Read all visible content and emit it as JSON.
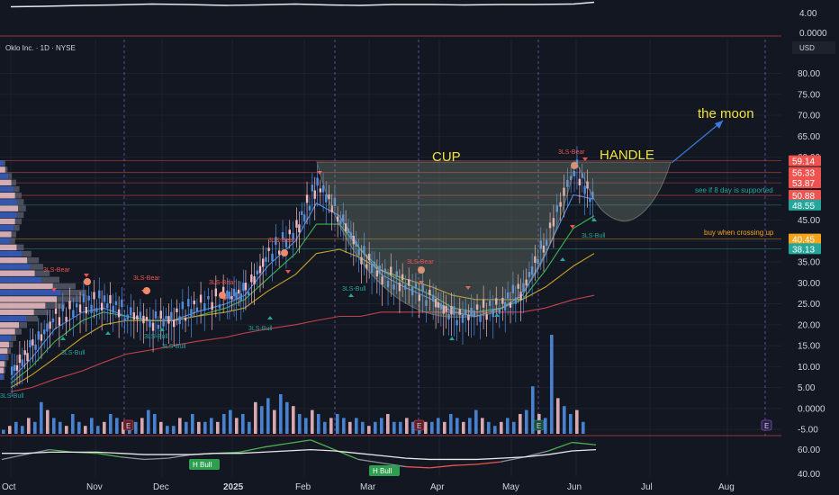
{
  "header": {
    "symbol_title": "Oklo Inc. · 1D · NYSE",
    "currency_label": "USD"
  },
  "colors": {
    "background": "#131722",
    "bull": "#26a69a",
    "bear": "#ef5350",
    "candle_up": "#4e8de2",
    "candle_down": "#f0b8c0",
    "ema8": "#4e8de2",
    "ema21": "#3fb24f",
    "sma50": "#c9a227",
    "sma200": "#c2414b",
    "annotation_yellow": "#f2e33a",
    "annotation_blue": "#3c7bdf"
  },
  "chart_data": [
    {
      "type": "line",
      "name": "top-oscillator",
      "yticks": [
        "4.00",
        "0.0000"
      ],
      "ylim": [
        -1,
        6
      ],
      "x": [
        "2024-10-01",
        "2024-10-15",
        "2024-11-01",
        "2024-11-15",
        "2024-12-01",
        "2024-12-15",
        "2025-01-02",
        "2025-01-15",
        "2025-02-01",
        "2025-02-15",
        "2025-03-01",
        "2025-03-15",
        "2025-04-01",
        "2025-04-15",
        "2025-05-01",
        "2025-05-15",
        "2025-06-01",
        "2025-06-10"
      ],
      "values": [
        4.3,
        4.4,
        4.6,
        4.7,
        4.9,
        4.8,
        4.6,
        4.7,
        4.9,
        4.7,
        4.6,
        4.8,
        4.8,
        4.7,
        4.8,
        4.8,
        4.9,
        5.3
      ]
    },
    {
      "type": "line",
      "name": "price",
      "title": "Oklo Inc. · 1D · NYSE",
      "ylabel": "USD",
      "scale": "linear",
      "ylim": [
        -5,
        85
      ],
      "x_ticks": [
        "Oct",
        "Nov",
        "Dec",
        "2025",
        "Feb",
        "Mar",
        "Apr",
        "May",
        "Jun",
        "Jul",
        "Aug"
      ],
      "y_ticks": [
        "80.00",
        "75.00",
        "70.00",
        "65.00",
        "60.00",
        "55.00",
        "50.00",
        "45.00",
        "40.00",
        "35.00",
        "30.00",
        "25.00",
        "20.00",
        "15.00",
        "10.00",
        "5.00",
        "0.0000",
        "-5.00"
      ],
      "price_labels": [
        {
          "value": 59.14,
          "text": "59.14",
          "color": "#ef5350"
        },
        {
          "value": 56.33,
          "text": "56.33",
          "color": "#ef5350"
        },
        {
          "value": 53.87,
          "text": "53.87",
          "color": "#ef5350"
        },
        {
          "value": 50.88,
          "text": "50.88",
          "color": "#ef5350"
        },
        {
          "value": 48.55,
          "text": "48.55",
          "color": "#26a69a"
        },
        {
          "value": 40.45,
          "text": "40.45",
          "color": "#f7a21b"
        },
        {
          "value": 38.13,
          "text": "38.13",
          "color": "#26a69a"
        }
      ],
      "horizontal_levels": [
        59.14,
        56.33,
        53.87,
        50.88,
        48.55,
        40.45,
        38.13
      ],
      "series": [
        {
          "name": "close",
          "x": [
            "2024-10-01",
            "2024-10-10",
            "2024-10-20",
            "2024-11-01",
            "2024-11-10",
            "2024-11-20",
            "2024-12-01",
            "2024-12-10",
            "2024-12-20",
            "2025-01-02",
            "2025-01-10",
            "2025-01-20",
            "2025-02-01",
            "2025-02-10",
            "2025-02-20",
            "2025-03-01",
            "2025-03-10",
            "2025-03-20",
            "2025-04-01",
            "2025-04-10",
            "2025-04-20",
            "2025-05-01",
            "2025-05-10",
            "2025-05-20",
            "2025-06-01",
            "2025-06-10"
          ],
          "values": [
            8,
            14,
            21,
            24,
            25,
            22,
            20,
            21,
            24,
            26,
            27,
            36,
            42,
            53,
            45,
            36,
            31,
            29,
            25,
            21,
            22,
            24,
            28,
            40,
            57,
            48
          ]
        },
        {
          "name": "ema8",
          "values": [
            7,
            12,
            19,
            23,
            24,
            22,
            21,
            21,
            23,
            25,
            27,
            34,
            40,
            49,
            46,
            38,
            32,
            29,
            26,
            23,
            22,
            24,
            27,
            37,
            51,
            50
          ]
        },
        {
          "name": "ema21",
          "values": [
            6,
            10,
            16,
            21,
            23,
            22,
            21,
            21,
            22,
            24,
            26,
            31,
            37,
            44,
            44,
            38,
            33,
            30,
            27,
            24,
            23,
            24,
            26,
            33,
            43,
            46
          ]
        },
        {
          "name": "sma50",
          "values": [
            5,
            8,
            12,
            17,
            20,
            21,
            21,
            21,
            22,
            23,
            24,
            28,
            32,
            37,
            38,
            36,
            33,
            31,
            29,
            27,
            26,
            26,
            26,
            29,
            34,
            37
          ]
        },
        {
          "name": "sma200",
          "values": [
            4,
            5,
            7,
            9,
            11,
            13,
            14,
            15,
            16,
            17,
            18,
            19,
            20,
            21,
            22,
            22,
            23,
            23,
            23,
            23,
            23,
            23,
            23,
            24,
            26,
            27
          ]
        }
      ]
    },
    {
      "type": "bar",
      "name": "volume",
      "values": [
        1,
        2,
        3,
        2,
        4,
        3,
        8,
        6,
        4,
        3,
        2,
        5,
        3,
        2,
        4,
        2,
        3,
        5,
        4,
        3,
        2,
        3,
        4,
        6,
        5,
        3,
        2,
        2,
        4,
        3,
        5,
        3,
        3,
        4,
        3,
        5,
        6,
        4,
        5,
        3,
        8,
        7,
        9,
        6,
        10,
        8,
        7,
        5,
        4,
        6,
        5,
        3,
        4,
        5,
        4,
        3,
        4,
        3,
        2,
        3,
        4,
        5,
        3,
        3,
        4,
        3,
        2,
        3,
        3,
        4,
        3,
        5,
        4,
        3,
        4,
        6,
        4,
        3,
        2,
        3,
        4,
        3,
        5,
        6,
        12,
        5,
        4,
        25,
        9,
        7,
        5,
        6,
        3
      ]
    },
    {
      "type": "line",
      "name": "bottom-oscillator",
      "yticks": [
        "60.00",
        "40.00"
      ],
      "ylim": [
        37,
        68
      ],
      "series": [
        {
          "name": "rsi",
          "values": [
            50,
            54,
            58,
            56,
            55,
            52,
            50,
            51,
            54,
            55,
            56,
            60,
            63,
            66,
            58,
            50,
            47,
            44,
            43,
            45,
            46,
            48,
            52,
            57,
            64,
            62
          ]
        },
        {
          "name": "signal",
          "values": [
            55,
            55,
            56,
            56,
            56,
            55,
            54,
            54,
            54,
            55,
            55,
            56,
            57,
            58,
            57,
            55,
            53,
            51,
            50,
            50,
            50,
            51,
            52,
            54,
            57,
            58
          ]
        }
      ]
    }
  ],
  "annotations": {
    "cup_label": "CUP",
    "handle_label": "HANDLE",
    "moon_label": "the moon",
    "support_note": "see if 8 day is supported",
    "buy_note": "buy when crossing up",
    "signals": [
      {
        "text": "3LS-Bear",
        "kind": "bear"
      },
      {
        "text": "3LS-Bear",
        "kind": "bear"
      },
      {
        "text": "3LS-Bear",
        "kind": "bear"
      },
      {
        "text": "3LS-Bear",
        "kind": "bear"
      },
      {
        "text": "3LS-Bear",
        "kind": "bear"
      },
      {
        "text": "3LS-Bear",
        "kind": "bear"
      },
      {
        "text": "3LS-Bull",
        "kind": "bull"
      },
      {
        "text": "3LS-Bull",
        "kind": "bull"
      },
      {
        "text": "3LS-Bull",
        "kind": "bull"
      },
      {
        "text": "3LS-Bull",
        "kind": "bull"
      },
      {
        "text": "3LS-Bull",
        "kind": "bull"
      },
      {
        "text": "3LS-Bull",
        "kind": "bull"
      },
      {
        "text": "3LS-Bull",
        "kind": "bull"
      }
    ],
    "earnings_marker": "E",
    "h_bull_labels": [
      "H Bull",
      "H Bull"
    ]
  }
}
